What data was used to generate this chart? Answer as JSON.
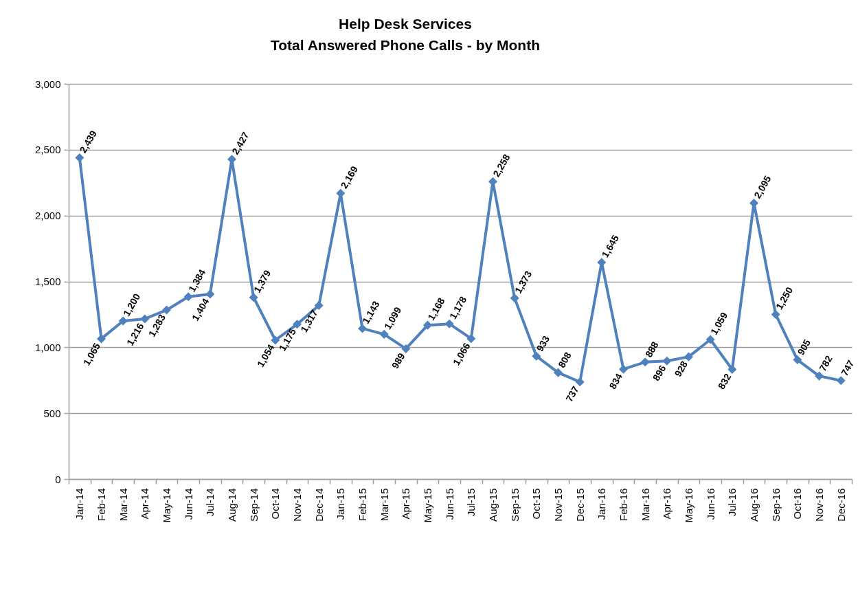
{
  "chart_data": {
    "type": "line",
    "title": "Help Desk Services",
    "subtitle": "Total Answered Phone Calls - by Month",
    "categories": [
      "Jan-14",
      "Feb-14",
      "Mar-14",
      "Apr-14",
      "May-14",
      "Jun-14",
      "Jul-14",
      "Aug-14",
      "Sep-14",
      "Oct-14",
      "Nov-14",
      "Dec-14",
      "Jan-15",
      "Feb-15",
      "Mar-15",
      "Apr-15",
      "May-15",
      "Jun-15",
      "Jul-15",
      "Aug-15",
      "Sep-15",
      "Oct-15",
      "Nov-15",
      "Dec-15",
      "Jan-16",
      "Feb-16",
      "Mar-16",
      "Apr-16",
      "May-16",
      "Jun-16",
      "Jul-16",
      "Aug-16",
      "Sep-16",
      "Oct-16",
      "Nov-16",
      "Dec-16"
    ],
    "series": [
      {
        "color": "#4f81bd",
        "values": [
          2439,
          1065,
          1200,
          1216,
          1283,
          1384,
          1404,
          2427,
          1379,
          1054,
          1175,
          1317,
          2169,
          1143,
          1099,
          989,
          1168,
          1178,
          1066,
          2258,
          1373,
          933,
          808,
          737,
          1645,
          834,
          888,
          896,
          928,
          1059,
          832,
          2095,
          1250,
          905,
          782,
          747
        ],
        "value_labels": [
          "2,439",
          "1,065",
          "1,200",
          "1,216",
          "1,283",
          "1,384",
          "1,404",
          "2,427",
          "1,379",
          "1,054",
          "1,175",
          "1,317",
          "2,169",
          "1,143",
          "1,099",
          "989",
          "1,168",
          "1,178",
          "1,066",
          "2,258",
          "1,373",
          "933",
          "808",
          "737",
          "1,645",
          "834",
          "888",
          "896",
          "928",
          "1,059",
          "832",
          "2,095",
          "1,250",
          "905",
          "782",
          "747"
        ]
      }
    ],
    "ylim": [
      0,
      3000
    ],
    "yticks": [
      0,
      500,
      {
        "value": 1000,
        "label": "1,000"
      },
      {
        "value": 1500,
        "label": "1,500"
      },
      {
        "value": 2000,
        "label": "2,000"
      },
      {
        "value": 2500,
        "label": "2,500"
      },
      {
        "value": 3000,
        "label": "3,000"
      }
    ],
    "grid": "y",
    "marker": "diamond"
  }
}
